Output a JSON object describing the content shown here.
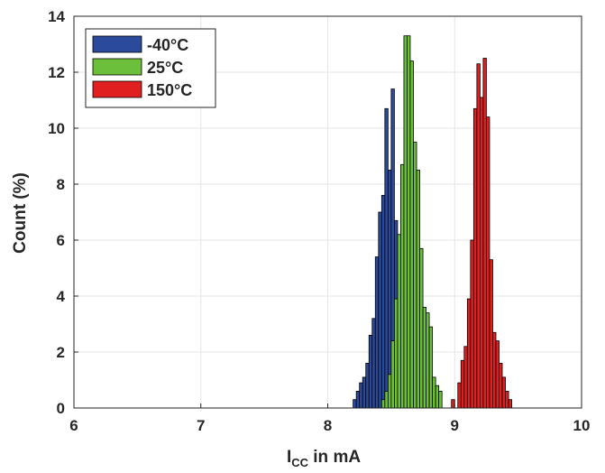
{
  "chart_data": {
    "type": "bar",
    "xlabel_main": "I",
    "xlabel_sub": "CC",
    "xlabel_rest": " in mA",
    "ylabel": "Count (%)",
    "xlim": [
      6,
      10
    ],
    "ylim": [
      0,
      14
    ],
    "xticks": [
      "6",
      "7",
      "8",
      "9",
      "10"
    ],
    "yticks": [
      "0",
      "2",
      "4",
      "6",
      "8",
      "10",
      "12",
      "14"
    ],
    "grid": true,
    "legend_position": "top-left",
    "bin_width": 0.025,
    "series": [
      {
        "name": "-40°C",
        "color": "#2b4a9c",
        "bins": [
          {
            "x": 8.2,
            "y": 0.3
          },
          {
            "x": 8.225,
            "y": 0.6
          },
          {
            "x": 8.25,
            "y": 0.9
          },
          {
            "x": 8.275,
            "y": 1.1
          },
          {
            "x": 8.3,
            "y": 1.6
          },
          {
            "x": 8.325,
            "y": 2.6
          },
          {
            "x": 8.35,
            "y": 3.2
          },
          {
            "x": 8.375,
            "y": 5.4
          },
          {
            "x": 8.4,
            "y": 7.0
          },
          {
            "x": 8.425,
            "y": 7.6
          },
          {
            "x": 8.45,
            "y": 10.7
          },
          {
            "x": 8.475,
            "y": 8.5
          },
          {
            "x": 8.5,
            "y": 11.4
          },
          {
            "x": 8.525,
            "y": 6.7
          },
          {
            "x": 8.55,
            "y": 4.2
          },
          {
            "x": 8.575,
            "y": 0.9
          },
          {
            "x": 8.6,
            "y": 0.2
          }
        ]
      },
      {
        "name": "25°C",
        "color": "#6cbf3a",
        "bins": [
          {
            "x": 8.425,
            "y": 0.3
          },
          {
            "x": 8.45,
            "y": 0.6
          },
          {
            "x": 8.475,
            "y": 1.2
          },
          {
            "x": 8.5,
            "y": 2.4
          },
          {
            "x": 8.525,
            "y": 3.9
          },
          {
            "x": 8.55,
            "y": 6.2
          },
          {
            "x": 8.575,
            "y": 8.7
          },
          {
            "x": 8.6,
            "y": 13.3
          },
          {
            "x": 8.625,
            "y": 13.3
          },
          {
            "x": 8.65,
            "y": 12.4
          },
          {
            "x": 8.675,
            "y": 9.5
          },
          {
            "x": 8.7,
            "y": 8.5
          },
          {
            "x": 8.725,
            "y": 5.7
          },
          {
            "x": 8.75,
            "y": 3.6
          },
          {
            "x": 8.775,
            "y": 3.4
          },
          {
            "x": 8.8,
            "y": 2.9
          },
          {
            "x": 8.825,
            "y": 1.1
          },
          {
            "x": 8.85,
            "y": 0.8
          },
          {
            "x": 8.875,
            "y": 0.6
          }
        ]
      },
      {
        "name": "150°C",
        "color": "#e02020",
        "bins": [
          {
            "x": 8.975,
            "y": 0.3
          },
          {
            "x": 9.025,
            "y": 0.9
          },
          {
            "x": 9.05,
            "y": 1.7
          },
          {
            "x": 9.075,
            "y": 2.2
          },
          {
            "x": 9.1,
            "y": 3.9
          },
          {
            "x": 9.125,
            "y": 6.0
          },
          {
            "x": 9.15,
            "y": 10.7
          },
          {
            "x": 9.175,
            "y": 12.3
          },
          {
            "x": 9.2,
            "y": 11.1
          },
          {
            "x": 9.225,
            "y": 12.5
          },
          {
            "x": 9.25,
            "y": 10.4
          },
          {
            "x": 9.275,
            "y": 5.3
          },
          {
            "x": 9.3,
            "y": 2.7
          },
          {
            "x": 9.325,
            "y": 2.4
          },
          {
            "x": 9.35,
            "y": 1.6
          },
          {
            "x": 9.375,
            "y": 1.1
          },
          {
            "x": 9.4,
            "y": 0.6
          },
          {
            "x": 9.425,
            "y": 0.3
          }
        ]
      }
    ]
  }
}
